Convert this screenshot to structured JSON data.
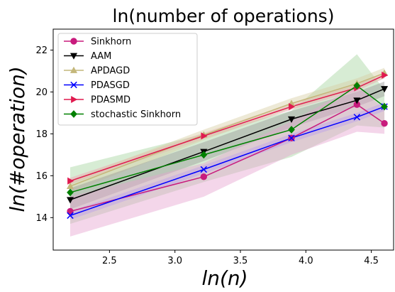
{
  "chart_data": {
    "type": "line",
    "title": "ln(number of operations)",
    "xlabel": "ln(n)",
    "ylabel": "ln(#operation)",
    "xlim": [
      2.07,
      4.67
    ],
    "ylim": [
      12.45,
      23.0
    ],
    "xticks": [
      2.5,
      3.0,
      3.5,
      4.0,
      4.5
    ],
    "yticks": [
      14,
      16,
      18,
      20,
      22
    ],
    "xtick_labels": [
      "2.5",
      "3.0",
      "3.5",
      "4.0",
      "4.5"
    ],
    "ytick_labels": [
      "14",
      "16",
      "18",
      "20",
      "22"
    ],
    "x": [
      2.2,
      3.22,
      3.89,
      4.39,
      4.6
    ],
    "grid": false,
    "legend_position": "top-left",
    "series": [
      {
        "name": "Sinkhorn",
        "color": "#c81b7d",
        "marker": "circle",
        "values": [
          14.3,
          15.95,
          17.8,
          19.4,
          18.5
        ],
        "band_low": [
          13.1,
          15.0,
          17.0,
          18.1,
          18.0
        ],
        "band_high": [
          15.0,
          16.6,
          18.6,
          20.3,
          19.2
        ],
        "band_color": "#e7a3d0"
      },
      {
        "name": "AAM",
        "color": "#000000",
        "marker": "triangle-down",
        "values": [
          14.85,
          17.15,
          18.7,
          19.6,
          20.15
        ],
        "band_low": [
          14.4,
          16.7,
          18.3,
          19.3,
          19.8
        ],
        "band_high": [
          15.4,
          17.6,
          19.1,
          20.0,
          20.5
        ],
        "band_color": "#9a9a9a"
      },
      {
        "name": "APDAGD",
        "color": "#c4b77a",
        "marker": "triangle-up",
        "values": [
          15.5,
          17.95,
          19.45,
          20.4,
          20.9
        ],
        "band_low": [
          15.2,
          17.7,
          19.2,
          20.15,
          20.65
        ],
        "band_high": [
          15.8,
          18.2,
          19.7,
          20.65,
          21.15
        ],
        "band_color": "#d8cfa5"
      },
      {
        "name": "PDASGD",
        "color": "#0000ff",
        "marker": "x",
        "values": [
          14.1,
          16.3,
          17.8,
          18.8,
          19.3
        ],
        "band_low": [
          13.9,
          16.1,
          17.6,
          18.6,
          19.1
        ],
        "band_high": [
          14.3,
          16.5,
          18.0,
          19.0,
          19.5
        ],
        "band_color": "#9999ff"
      },
      {
        "name": "PDASMD",
        "color": "#e01a4f",
        "marker": "triangle-right",
        "values": [
          15.75,
          17.9,
          19.3,
          20.2,
          20.8
        ],
        "band_low": [
          15.6,
          17.75,
          19.15,
          20.05,
          20.65
        ],
        "band_high": [
          15.9,
          18.05,
          19.45,
          20.35,
          20.95
        ],
        "band_color": "#f2a0b5"
      },
      {
        "name": "stochastic Sinkhorn",
        "color": "#008000",
        "marker": "diamond",
        "values": [
          15.2,
          17.0,
          18.2,
          20.3,
          19.3
        ],
        "band_low": [
          13.7,
          15.7,
          16.9,
          18.4,
          18.3
        ],
        "band_high": [
          16.4,
          18.0,
          19.1,
          21.8,
          20.1
        ],
        "band_color": "#a6d5a0"
      }
    ]
  }
}
